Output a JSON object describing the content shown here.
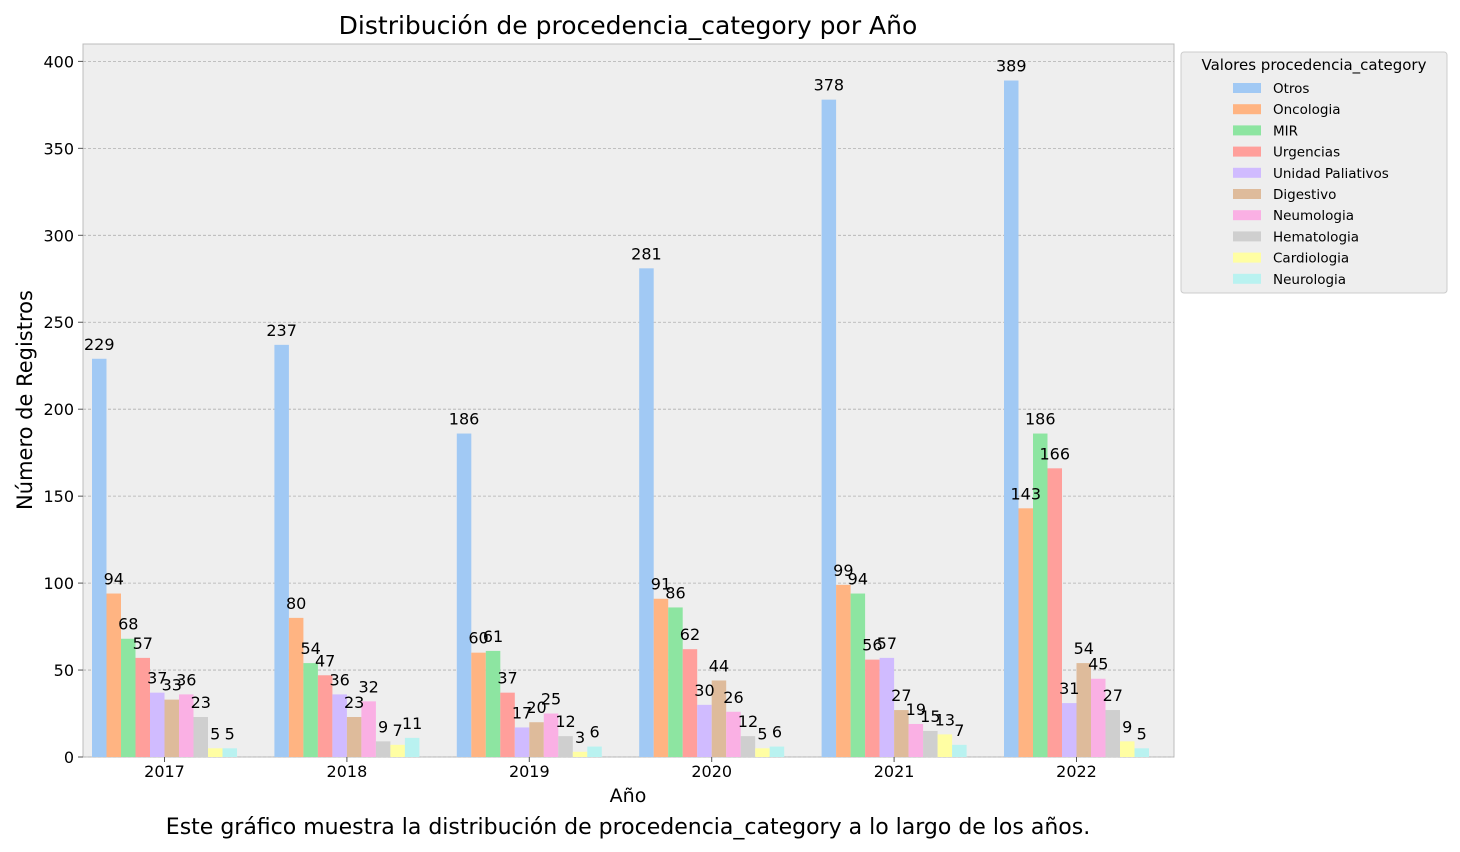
{
  "chart_data": {
    "type": "bar",
    "title": "Distribución de procedencia_category por Año",
    "xlabel": "Año",
    "ylabel": "Número de Registros",
    "caption": "Este gráfico muestra la distribución de procedencia_category a lo largo de los años.",
    "categories": [
      "2017",
      "2018",
      "2019",
      "2020",
      "2021",
      "2022"
    ],
    "ylim": [
      0,
      410
    ],
    "yticks": [
      0,
      50,
      100,
      150,
      200,
      250,
      300,
      350,
      400
    ],
    "grid": true,
    "legend": {
      "title": "Valores procedencia_category",
      "placement": "outside-right"
    },
    "series": [
      {
        "name": "Otros",
        "color": "#a1c9f4",
        "values": [
          229,
          237,
          186,
          281,
          378,
          389
        ]
      },
      {
        "name": "Oncologia",
        "color": "#ffb482",
        "values": [
          94,
          80,
          60,
          91,
          99,
          143
        ]
      },
      {
        "name": "MIR",
        "color": "#8de5a1",
        "values": [
          68,
          54,
          61,
          86,
          94,
          186
        ]
      },
      {
        "name": "Urgencias",
        "color": "#ff9f9b",
        "values": [
          57,
          47,
          37,
          62,
          56,
          166
        ]
      },
      {
        "name": "Unidad Paliativos",
        "color": "#d0bbff",
        "values": [
          37,
          36,
          17,
          30,
          57,
          31
        ]
      },
      {
        "name": "Digestivo",
        "color": "#debb9b",
        "values": [
          33,
          23,
          20,
          44,
          27,
          54
        ]
      },
      {
        "name": "Neumologia",
        "color": "#fab0e4",
        "values": [
          36,
          32,
          25,
          26,
          19,
          45
        ]
      },
      {
        "name": "Hematologia",
        "color": "#cfcfcf",
        "values": [
          23,
          9,
          12,
          12,
          15,
          27
        ]
      },
      {
        "name": "Cardiologia",
        "color": "#fffea3",
        "values": [
          5,
          7,
          3,
          5,
          13,
          9
        ]
      },
      {
        "name": "Neurologia",
        "color": "#b9f2f0",
        "values": [
          5,
          11,
          6,
          6,
          7,
          5
        ]
      }
    ]
  }
}
